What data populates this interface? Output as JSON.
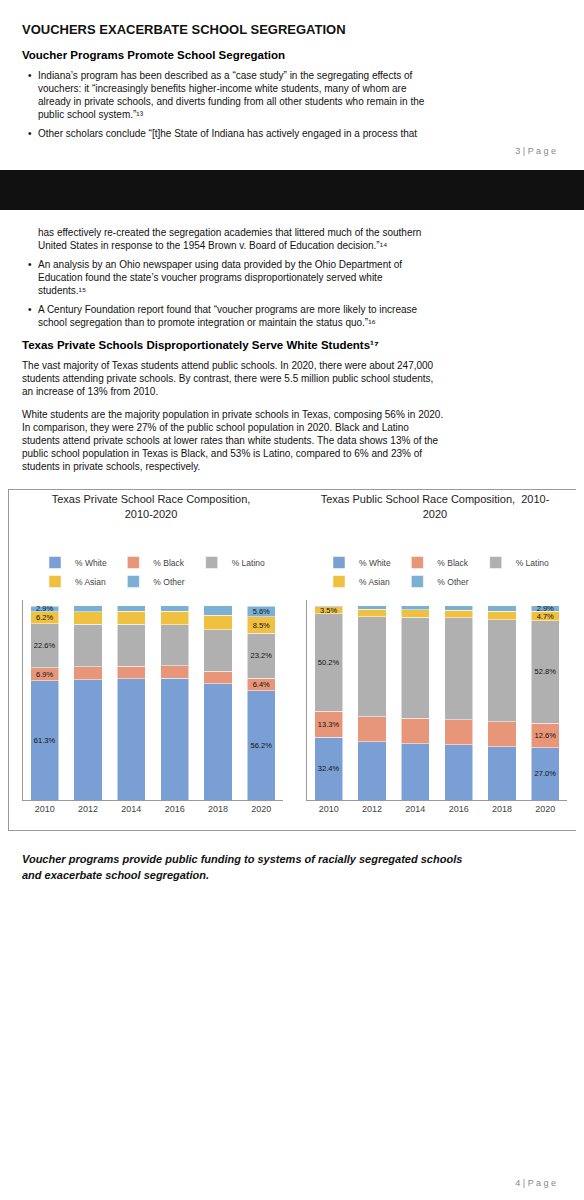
{
  "title": "VOUCHERS EXACERBATE SCHOOL SEGREGATION",
  "annotations": [
    {
      "heading": "Voucher Programs Promote School Segregation"
    },
    {
      "bullet": "•",
      "lines": [
        "Indiana’s program has been described as a “case study” in the segregating effects of",
        "vouchers: it “increasingly benefits higher-income white students, many of whom are",
        "already in private schools, and diverts funding from all other students who remain in the",
        "public school system.”¹³"
      ]
    },
    {
      "bullet": "•",
      "lines": [
        "Other scholars conclude “[t]he State of Indiana has actively engaged in a process that"
      ]
    },
    {
      "page_number": "3 | P a g e"
    },
    {
      "continued": true,
      "lines": [
        "has effectively re-created the segregation academies that littered much of the southern",
        "United States in response to the 1954 Brown v. Board of Education decision.”¹⁴"
      ]
    },
    {
      "bullet": "•",
      "lines": [
        "An analysis by an Ohio newspaper using data provided by the Ohio Department of",
        "Education found the state’s voucher programs disproportionately served white",
        "students.¹⁵"
      ]
    },
    {
      "bullet": "•",
      "lines": [
        "A Century Foundation report found that “voucher programs are more likely to increase",
        "school segregation than to promote integration or maintain the status quo.”¹⁶"
      ]
    },
    {
      "heading": "Texas Private Schools Disproportionately Serve White Students¹⁷"
    },
    {
      "lines": [
        "The vast majority of Texas students attend public schools. In 2020, there were about 247,000",
        "students attending private schools. By contrast, there were 5.5 million public school students,",
        "an increase of 13% from 2010."
      ]
    },
    {
      "lines": [
        "White students are the majority population in private schools in Texas, composing 56% in 2020.",
        "In comparison, they were 27% of the public school population in 2020. Black and Latino",
        "students attend private schools at lower rates than white students. The data shows 13% of the",
        "public school population in Texas is Black, and 53% is Latino, compared to 6% and 23% of",
        "students in private schools, respectively."
      ]
    },
    {
      "footer": [
        "Voucher programs provide public funding to systems of racially segregated schools",
        "and exacerbate school segregation."
      ]
    },
    {
      "page_number": "4 | P a g e"
    }
  ],
  "chart_data": [
    {
      "type": "bar",
      "stacked": true,
      "title": "Texas Private School Race Composition,\n2010-2020",
      "categories": [
        "2010",
        "2012",
        "2014",
        "2016",
        "2018",
        "2020"
      ],
      "ylim": [
        0,
        103
      ],
      "yticks": [],
      "tick_labels": "x",
      "grid": false,
      "legend": "top",
      "data_labels": true,
      "series": [
        {
          "name": "% White",
          "color": "#7a9fd4",
          "values": [
            61.3,
            62.0,
            62.5,
            62.8,
            60.0,
            56.2
          ],
          "value_labels": [
            "61.3%",
            null,
            null,
            null,
            null,
            "56.2%"
          ]
        },
        {
          "name": "% Black",
          "color": "#e8967a",
          "values": [
            6.9,
            6.5,
            6.4,
            6.3,
            6.2,
            6.4
          ],
          "value_labels": [
            "6.9%",
            null,
            null,
            null,
            null,
            "6.4%"
          ]
        },
        {
          "name": "% Latino",
          "color": "#b0b0b0",
          "values": [
            22.6,
            22.0,
            21.5,
            21.2,
            21.5,
            23.2
          ],
          "value_labels": [
            "22.6%",
            null,
            null,
            null,
            null,
            "23.2%"
          ]
        },
        {
          "name": "% Asian",
          "color": "#f0c040",
          "values": [
            6.2,
            6.5,
            6.7,
            6.8,
            7.5,
            8.5
          ],
          "value_labels": [
            "6.2%",
            null,
            null,
            null,
            null,
            "8.5%"
          ]
        },
        {
          "name": "% Other",
          "color": "#7ab0d4",
          "values": [
            2.9,
            3.0,
            3.0,
            2.9,
            4.8,
            5.6
          ],
          "value_labels": [
            "2.9%",
            null,
            null,
            null,
            null,
            "5.6%"
          ]
        }
      ]
    },
    {
      "type": "bar",
      "stacked": true,
      "title": "Texas Public School Race Composition,  2010-\n2020",
      "categories": [
        "2010",
        "2012",
        "2014",
        "2016",
        "2018",
        "2020"
      ],
      "ylim": [
        0,
        103
      ],
      "yticks": [],
      "tick_labels": "x",
      "grid": false,
      "legend": "top",
      "data_labels": true,
      "series": [
        {
          "name": "% White",
          "color": "#7a9fd4",
          "values": [
            32.4,
            30.0,
            29.0,
            28.5,
            27.5,
            27.0
          ],
          "value_labels": [
            "32.4%",
            null,
            null,
            null,
            null,
            "27.0%"
          ]
        },
        {
          "name": "% Black",
          "color": "#e8967a",
          "values": [
            13.3,
            13.0,
            13.0,
            12.8,
            12.7,
            12.6
          ],
          "value_labels": [
            "13.3%",
            null,
            null,
            null,
            null,
            "12.6%"
          ]
        },
        {
          "name": "% Latino",
          "color": "#b0b0b0",
          "values": [
            50.2,
            51.5,
            52.0,
            52.5,
            52.6,
            52.8
          ],
          "value_labels": [
            "50.2%",
            null,
            null,
            null,
            null,
            "52.8%"
          ]
        },
        {
          "name": "% Asian",
          "color": "#f0c040",
          "values": [
            3.5,
            3.8,
            4.0,
            4.0,
            4.5,
            4.7
          ],
          "value_labels": [
            "3.5%",
            null,
            null,
            null,
            null,
            "4.7%"
          ]
        },
        {
          "name": "% Other",
          "color": "#7ab0d4",
          "values": [
            0.6,
            1.7,
            2.0,
            2.2,
            2.7,
            2.9
          ],
          "value_labels": [
            null,
            null,
            null,
            null,
            null,
            "2.9%"
          ]
        }
      ]
    }
  ]
}
